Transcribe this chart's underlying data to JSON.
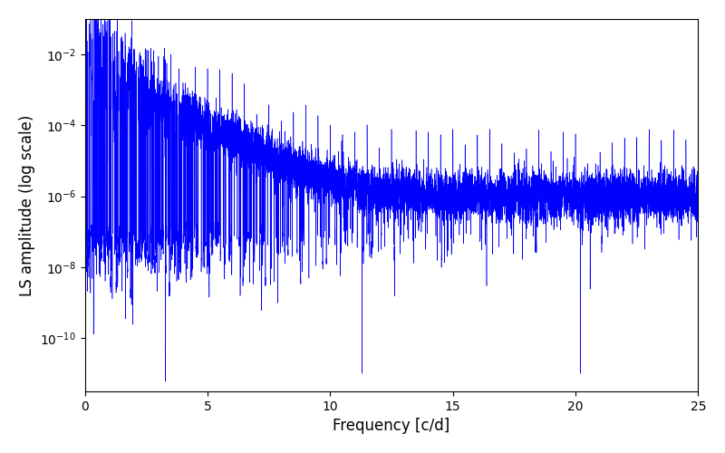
{
  "title": "",
  "xlabel": "Frequency [c/d]",
  "ylabel": "LS amplitude (log scale)",
  "xlim": [
    0,
    25
  ],
  "ylim_log": [
    -11.5,
    -1.0
  ],
  "line_color": "#0000ff",
  "linewidth": 0.4,
  "figsize": [
    8.0,
    5.0
  ],
  "dpi": 100,
  "seed": 12345,
  "n_points": 10000,
  "freq_max": 25.0,
  "background_color": "#ffffff"
}
